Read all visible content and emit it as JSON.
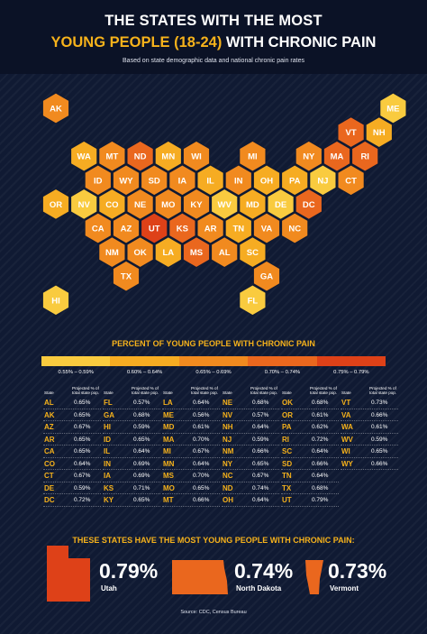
{
  "header": {
    "title_line1": "THE STATES WITH THE MOST",
    "title_line2_highlight": "YOUNG PEOPLE (18-24)",
    "title_line2_rest": " WITH CHRONIC PAIN",
    "subtitle": "Based on state demographic data and national chronic pain rates"
  },
  "legend": {
    "title": "PERCENT OF YOUNG PEOPLE WITH CHRONIC PAIN",
    "buckets": [
      {
        "label": "0.55% – 0.59%",
        "color": "#f9cb3f"
      },
      {
        "label": "0.60% – 0.64%",
        "color": "#f6ac22"
      },
      {
        "label": "0.65% – 0.69%",
        "color": "#f18a1f"
      },
      {
        "label": "0.70% – 0.74%",
        "color": "#ea671e"
      },
      {
        "label": "0.75% – 0.79%",
        "color": "#de4118"
      }
    ]
  },
  "table_header": {
    "state": "State",
    "pct_line1": "Projected % of",
    "pct_line2": "total state pop."
  },
  "chart_data": {
    "type": "table",
    "title": "PERCENT OF YOUNG PEOPLE WITH CHRONIC PAIN",
    "columns": [
      [
        [
          "AL",
          "0.65%"
        ],
        [
          "AK",
          "0.65%"
        ],
        [
          "AZ",
          "0.67%"
        ],
        [
          "AR",
          "0.65%"
        ],
        [
          "CA",
          "0.65%"
        ],
        [
          "CO",
          "0.64%"
        ],
        [
          "CT",
          "0.67%"
        ],
        [
          "DE",
          "0.59%"
        ],
        [
          "DC",
          "0.72%"
        ]
      ],
      [
        [
          "FL",
          "0.57%"
        ],
        [
          "GA",
          "0.68%"
        ],
        [
          "HI",
          "0.59%"
        ],
        [
          "ID",
          "0.65%"
        ],
        [
          "IL",
          "0.64%"
        ],
        [
          "IN",
          "0.69%"
        ],
        [
          "IA",
          "0.69%"
        ],
        [
          "KS",
          "0.71%"
        ],
        [
          "KY",
          "0.65%"
        ]
      ],
      [
        [
          "LA",
          "0.64%"
        ],
        [
          "ME",
          "0.56%"
        ],
        [
          "MD",
          "0.61%"
        ],
        [
          "MA",
          "0.70%"
        ],
        [
          "MI",
          "0.67%"
        ],
        [
          "MN",
          "0.64%"
        ],
        [
          "MS",
          "0.70%"
        ],
        [
          "MO",
          "0.65%"
        ],
        [
          "MT",
          "0.66%"
        ]
      ],
      [
        [
          "NE",
          "0.68%"
        ],
        [
          "NV",
          "0.57%"
        ],
        [
          "NH",
          "0.64%"
        ],
        [
          "NJ",
          "0.59%"
        ],
        [
          "NM",
          "0.66%"
        ],
        [
          "NY",
          "0.65%"
        ],
        [
          "NC",
          "0.67%"
        ],
        [
          "ND",
          "0.74%"
        ],
        [
          "OH",
          "0.64%"
        ]
      ],
      [
        [
          "OK",
          "0.68%"
        ],
        [
          "OR",
          "0.61%"
        ],
        [
          "PA",
          "0.62%"
        ],
        [
          "RI",
          "0.72%"
        ],
        [
          "SC",
          "0.64%"
        ],
        [
          "SD",
          "0.66%"
        ],
        [
          "TN",
          "0.64%"
        ],
        [
          "TX",
          "0.68%"
        ],
        [
          "UT",
          "0.79%"
        ]
      ],
      [
        [
          "VT",
          "0.73%"
        ],
        [
          "VA",
          "0.66%"
        ],
        [
          "WA",
          "0.61%"
        ],
        [
          "WV",
          "0.59%"
        ],
        [
          "WI",
          "0.65%"
        ],
        [
          "WY",
          "0.66%"
        ]
      ]
    ],
    "hex_map": [
      {
        "s": "AK",
        "c": 0,
        "r": 0,
        "v": 0.65
      },
      {
        "s": "ME",
        "c": 12,
        "r": 0,
        "v": 0.56
      },
      {
        "s": "VT",
        "c": 10,
        "r": 1,
        "v": 0.73
      },
      {
        "s": "NH",
        "c": 11,
        "r": 1,
        "v": 0.64
      },
      {
        "s": "WA",
        "c": 1,
        "r": 2,
        "v": 0.61
      },
      {
        "s": "MT",
        "c": 2,
        "r": 2,
        "v": 0.66
      },
      {
        "s": "ND",
        "c": 3,
        "r": 2,
        "v": 0.74
      },
      {
        "s": "MN",
        "c": 4,
        "r": 2,
        "v": 0.64
      },
      {
        "s": "WI",
        "c": 5,
        "r": 2,
        "v": 0.65
      },
      {
        "s": "MI",
        "c": 7,
        "r": 2,
        "v": 0.67
      },
      {
        "s": "NY",
        "c": 9,
        "r": 2,
        "v": 0.65
      },
      {
        "s": "MA",
        "c": 10,
        "r": 2,
        "v": 0.7
      },
      {
        "s": "RI",
        "c": 11,
        "r": 2,
        "v": 0.72
      },
      {
        "s": "ID",
        "c": 1,
        "r": 3,
        "v": 0.65
      },
      {
        "s": "WY",
        "c": 2,
        "r": 3,
        "v": 0.66
      },
      {
        "s": "SD",
        "c": 3,
        "r": 3,
        "v": 0.66
      },
      {
        "s": "IA",
        "c": 4,
        "r": 3,
        "v": 0.69
      },
      {
        "s": "IL",
        "c": 5,
        "r": 3,
        "v": 0.64
      },
      {
        "s": "IN",
        "c": 6,
        "r": 3,
        "v": 0.69
      },
      {
        "s": "OH",
        "c": 7,
        "r": 3,
        "v": 0.64
      },
      {
        "s": "PA",
        "c": 8,
        "r": 3,
        "v": 0.62
      },
      {
        "s": "NJ",
        "c": 9,
        "r": 3,
        "v": 0.59
      },
      {
        "s": "CT",
        "c": 10,
        "r": 3,
        "v": 0.67
      },
      {
        "s": "OR",
        "c": 0,
        "r": 4,
        "v": 0.61
      },
      {
        "s": "NV",
        "c": 1,
        "r": 4,
        "v": 0.57
      },
      {
        "s": "CO",
        "c": 2,
        "r": 4,
        "v": 0.64
      },
      {
        "s": "NE",
        "c": 3,
        "r": 4,
        "v": 0.68
      },
      {
        "s": "MO",
        "c": 4,
        "r": 4,
        "v": 0.65
      },
      {
        "s": "KY",
        "c": 5,
        "r": 4,
        "v": 0.65
      },
      {
        "s": "WV",
        "c": 6,
        "r": 4,
        "v": 0.59
      },
      {
        "s": "MD",
        "c": 7,
        "r": 4,
        "v": 0.61
      },
      {
        "s": "DE",
        "c": 8,
        "r": 4,
        "v": 0.59
      },
      {
        "s": "DC",
        "c": 9,
        "r": 4,
        "v": 0.72
      },
      {
        "s": "CA",
        "c": 1,
        "r": 5,
        "v": 0.65
      },
      {
        "s": "AZ",
        "c": 2,
        "r": 5,
        "v": 0.67
      },
      {
        "s": "UT",
        "c": 3,
        "r": 5,
        "v": 0.79
      },
      {
        "s": "KS",
        "c": 4,
        "r": 5,
        "v": 0.71
      },
      {
        "s": "AR",
        "c": 5,
        "r": 5,
        "v": 0.65
      },
      {
        "s": "TN",
        "c": 6,
        "r": 5,
        "v": 0.64
      },
      {
        "s": "VA",
        "c": 7,
        "r": 5,
        "v": 0.66
      },
      {
        "s": "NC",
        "c": 8,
        "r": 5,
        "v": 0.67
      },
      {
        "s": "NM",
        "c": 2,
        "r": 6,
        "v": 0.66
      },
      {
        "s": "OK",
        "c": 3,
        "r": 6,
        "v": 0.68
      },
      {
        "s": "LA",
        "c": 4,
        "r": 6,
        "v": 0.64
      },
      {
        "s": "MS",
        "c": 5,
        "r": 6,
        "v": 0.7
      },
      {
        "s": "AL",
        "c": 6,
        "r": 6,
        "v": 0.65
      },
      {
        "s": "SC",
        "c": 7,
        "r": 6,
        "v": 0.64
      },
      {
        "s": "TX",
        "c": 2,
        "r": 7,
        "v": 0.68
      },
      {
        "s": "GA",
        "c": 7,
        "r": 7,
        "v": 0.68
      },
      {
        "s": "HI",
        "c": 0,
        "r": 8,
        "v": 0.59
      },
      {
        "s": "FL",
        "c": 7,
        "r": 8,
        "v": 0.57
      }
    ]
  },
  "most": {
    "title": "THESE STATES HAVE THE MOST YOUNG PEOPLE WITH CHRONIC PAIN:",
    "items": [
      {
        "value": "0.79%",
        "name": "Utah"
      },
      {
        "value": "0.74%",
        "name": "North Dakota"
      },
      {
        "value": "0.73%",
        "name": "Vermont"
      }
    ]
  },
  "source": "Source: CDC, Census Bureau"
}
